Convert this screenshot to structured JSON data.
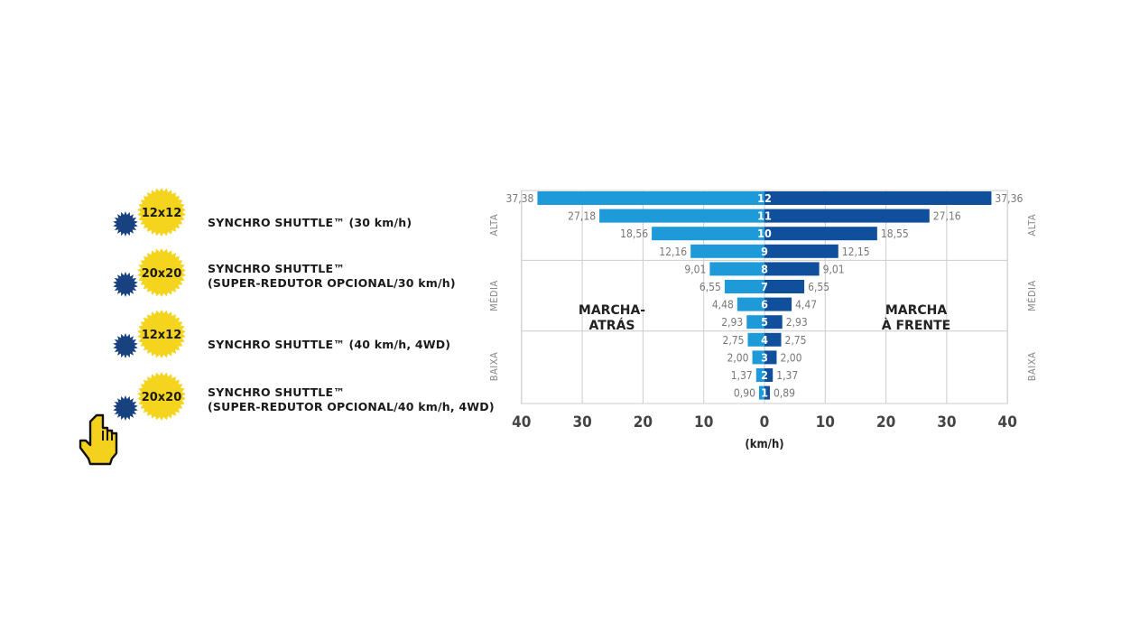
{
  "options": [
    {
      "badge_text": "12x12",
      "label_lines": [
        "SYNCHRO SHUTTLE™ (30 km/h)"
      ]
    },
    {
      "badge_text": "20x20",
      "label_lines": [
        "SYNCHRO SHUTTLE™",
        "(SUPER-REDUTOR OPCIONAL/30 km/h)"
      ]
    },
    {
      "badge_text": "12x12",
      "label_lines": [
        "SYNCHRO SHUTTLE™ (40 km/h, 4WD)"
      ]
    },
    {
      "badge_text": "20x20",
      "label_lines": [
        "SYNCHRO SHUTTLE™",
        "(SUPER-REDUTOR OPCIONAL/40 km/h, 4WD)"
      ]
    }
  ],
  "colors": {
    "badge_yellow": "#f5d41e",
    "badge_blue": "#17417f",
    "reverse_bar": "#1f9ad8",
    "forward_bar": "#0f4f9c",
    "cursor": "#f3d11d",
    "grid": "#cccccc"
  },
  "icons": {
    "cursor": "hand-pointer-icon"
  },
  "chart_data": {
    "type": "bar",
    "orientation": "horizontal-butterfly",
    "categories": [
      "12",
      "11",
      "10",
      "9",
      "8",
      "7",
      "6",
      "5",
      "4",
      "3",
      "2",
      "1"
    ],
    "series": [
      {
        "name": "MARCHA-ATRÁS",
        "values": [
          37.38,
          27.18,
          18.56,
          12.16,
          9.01,
          6.55,
          4.48,
          2.93,
          2.75,
          2.0,
          1.37,
          0.9
        ],
        "labels": [
          "37,38",
          "27,18",
          "18,56",
          "12,16",
          "9,01",
          "6,55",
          "4,48",
          "2,93",
          "2,75",
          "2,00",
          "1,37",
          "0,90"
        ]
      },
      {
        "name": "MARCHA À FRENTE",
        "values": [
          37.36,
          27.16,
          18.55,
          12.15,
          9.01,
          6.55,
          4.47,
          2.93,
          2.75,
          2.0,
          1.37,
          0.89
        ],
        "labels": [
          "37,36",
          "27,16",
          "18,55",
          "12,15",
          "9,01",
          "6,55",
          "4,47",
          "2,93",
          "2,75",
          "2,00",
          "1,37",
          "0,89"
        ]
      }
    ],
    "reverse_label_lines": [
      "MARCHA-",
      "ATRÁS"
    ],
    "forward_label_lines": [
      "MARCHA",
      "À FRENTE"
    ],
    "groups": [
      {
        "name": "ALTA",
        "gears": [
          "12",
          "11",
          "10",
          "9"
        ]
      },
      {
        "name": "MÉDIA",
        "gears": [
          "8",
          "7",
          "6",
          "5"
        ]
      },
      {
        "name": "BAIXA",
        "gears": [
          "4",
          "3",
          "2",
          "1"
        ]
      }
    ],
    "x_ticks": [
      40,
      30,
      20,
      10,
      0,
      10,
      20,
      30,
      40
    ],
    "xlabel": "(km/h)",
    "xlim": [
      -40,
      40
    ],
    "grid": true
  }
}
